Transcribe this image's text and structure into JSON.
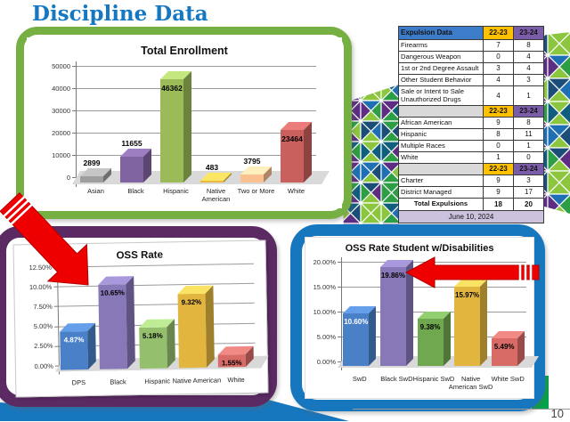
{
  "slide": {
    "title": "Discipline Data",
    "page_number": "10"
  },
  "chart_data": [
    {
      "type": "bar",
      "title": "Total Enrollment",
      "categories": [
        "Asian",
        "Black",
        "Hispanic",
        "Native American",
        "Two or More",
        "White"
      ],
      "values": [
        2899,
        11655,
        46362,
        483,
        3795,
        23464
      ],
      "labels": [
        "2899",
        "11655",
        "46362",
        "483",
        "3795",
        "23464"
      ],
      "yticks": [
        "50000",
        "40000",
        "30000",
        "20000",
        "10000",
        "0"
      ],
      "ylim": [
        0,
        50000
      ],
      "ymax": 50000,
      "bar_colors": [
        "#9E9E9E",
        "#8064A2",
        "#9BBB59",
        "#E8B93E",
        "#FAC090",
        "#C9605D"
      ],
      "label_colors": [
        "#000",
        "#000",
        "#000",
        "#000",
        "#000",
        "#000"
      ],
      "label_inside": [
        false,
        false,
        true,
        false,
        false,
        true
      ],
      "xlabel": "",
      "ylabel": "",
      "grid": true,
      "legend": false
    },
    {
      "type": "bar",
      "title": "OSS Rate",
      "categories": [
        "DPS",
        "Black",
        "Hispanic",
        "Native American",
        "White"
      ],
      "values": [
        4.87,
        10.65,
        5.18,
        9.32,
        1.55
      ],
      "labels": [
        "4.87%",
        "10.65%",
        "5.18%",
        "9.32%",
        "1.55%"
      ],
      "yticks": [
        "12.50%",
        "10.00%",
        "7.50%",
        "5.00%",
        "2.50%",
        "0.00%"
      ],
      "ylim": [
        0,
        12.5
      ],
      "ymax": 12.5,
      "bar_colors": [
        "#4A80C8",
        "#8878B8",
        "#94C06E",
        "#E2B53E",
        "#D96B67"
      ],
      "label_colors": [
        "#fff",
        "#000",
        "#000",
        "#000",
        "#000"
      ],
      "label_inside": [
        true,
        true,
        true,
        true,
        true
      ],
      "xlabel": "",
      "ylabel": "",
      "grid": true,
      "legend": false
    },
    {
      "type": "bar",
      "title": "OSS Rate Student w/Disabilities",
      "categories": [
        "SwD",
        "Black SwD",
        "Hispanic SwD",
        "Native American SwD",
        "White SwD"
      ],
      "values": [
        10.6,
        19.86,
        9.38,
        15.97,
        5.49
      ],
      "labels": [
        "10.60%",
        "19.86%",
        "9.38%",
        "15.97%",
        "5.49%"
      ],
      "yticks": [
        "20.00%",
        "15.00%",
        "10.00%",
        "5.00%",
        "0.00%"
      ],
      "ylim": [
        0,
        20
      ],
      "ymax": 20,
      "bar_colors": [
        "#4A80C8",
        "#8878B8",
        "#6FA84F",
        "#E2B53E",
        "#D96B67"
      ],
      "label_colors": [
        "#fff",
        "#000",
        "#000",
        "#000",
        "#000"
      ],
      "label_inside": [
        true,
        true,
        true,
        true,
        true
      ],
      "xlabel": "",
      "ylabel": "",
      "grid": true,
      "legend": false
    },
    {
      "type": "table",
      "title": "Expulsion Data",
      "header": {
        "label": "Expulsion Data",
        "col1": "22-23",
        "col2": "23-24"
      },
      "rows": [
        {
          "label": "Firearms",
          "v1": "7",
          "v2": "8"
        },
        {
          "label": "Dangerous Weapon",
          "v1": "0",
          "v2": "4"
        },
        {
          "label": "1st or 2nd Degree Assault",
          "v1": "3",
          "v2": "4"
        },
        {
          "label": "Other Student Behavior",
          "v1": "4",
          "v2": "3"
        },
        {
          "label": "Sale or Intent to Sale Unauthorized Drugs",
          "v1": "4",
          "v2": "1"
        },
        {
          "type": "divider",
          "v1": "22-23",
          "v2": "23-24"
        },
        {
          "label": "African American",
          "v1": "9",
          "v2": "8"
        },
        {
          "label": "Hispanic",
          "v1": "8",
          "v2": "11"
        },
        {
          "label": "Multiple Races",
          "v1": "0",
          "v2": "1"
        },
        {
          "label": "White",
          "v1": "1",
          "v2": "0"
        },
        {
          "type": "divider",
          "v1": "22-23",
          "v2": "23-24"
        },
        {
          "label": "Charter",
          "v1": "9",
          "v2": "3"
        },
        {
          "label": "District Managed",
          "v1": "9",
          "v2": "17"
        },
        {
          "type": "total",
          "label": "Total Expulsions",
          "v1": "18",
          "v2": "20"
        },
        {
          "type": "date",
          "label": "June 10, 2024"
        }
      ]
    }
  ],
  "decor": {
    "title_color": "#1778C2",
    "green_border": "#76B043",
    "purple_border": "#5B2A63",
    "blue_border": "#1777BE",
    "arrow_color": "#EE0000",
    "wave_color": "#1777BE",
    "corner_green": "#00A44A",
    "mosaic_colors": [
      "#0F5E7E",
      "#1F6FB5",
      "#2E9E44",
      "#8CC63F",
      "#5C2D82",
      "#1A4E78"
    ],
    "table_colors": {
      "header_bg": "#3D7CC9",
      "gold": "#FFC000",
      "purple": "#7B5CA8",
      "divider": "#D9D9D9",
      "date_bg": "#CCC2DE"
    }
  }
}
